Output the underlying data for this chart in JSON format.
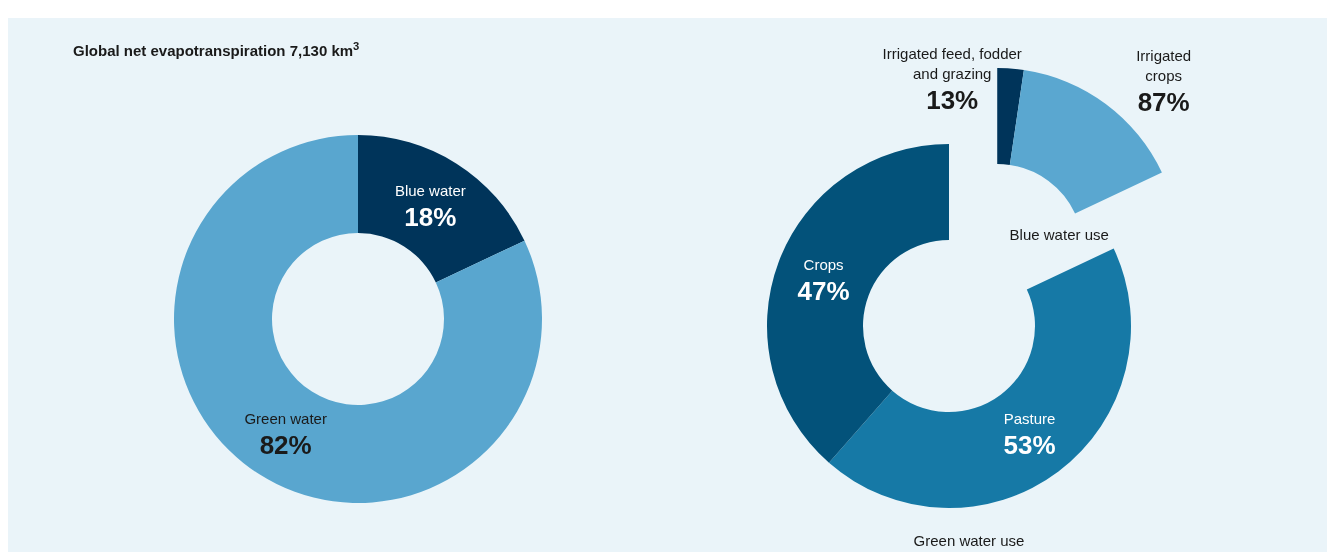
{
  "chart_data": [
    {
      "type": "donut",
      "title": "Global net evapotranspiration 7,130 km$^{3}$",
      "categories": [
        "Blue water",
        "Green water"
      ],
      "values": [
        18,
        82
      ],
      "value_labels": [
        "18%",
        "82%"
      ],
      "colors": [
        "#00345a",
        "#59a6cf"
      ]
    },
    {
      "type": "donut",
      "title": "Blue water use",
      "categories": [
        "Irrigated feed, fodder and grazing",
        "Irrigated crops"
      ],
      "values": [
        13,
        87
      ],
      "value_labels": [
        "13%",
        "87%"
      ],
      "colors": [
        "#00345a",
        "#5aa7d0"
      ]
    },
    {
      "type": "donut",
      "title": "Green water use",
      "categories": [
        "Pasture",
        "Crops"
      ],
      "values": [
        53,
        47
      ],
      "value_labels": [
        "53%",
        "47%"
      ],
      "colors": [
        "#1679a6",
        "#03527a"
      ]
    }
  ]
}
